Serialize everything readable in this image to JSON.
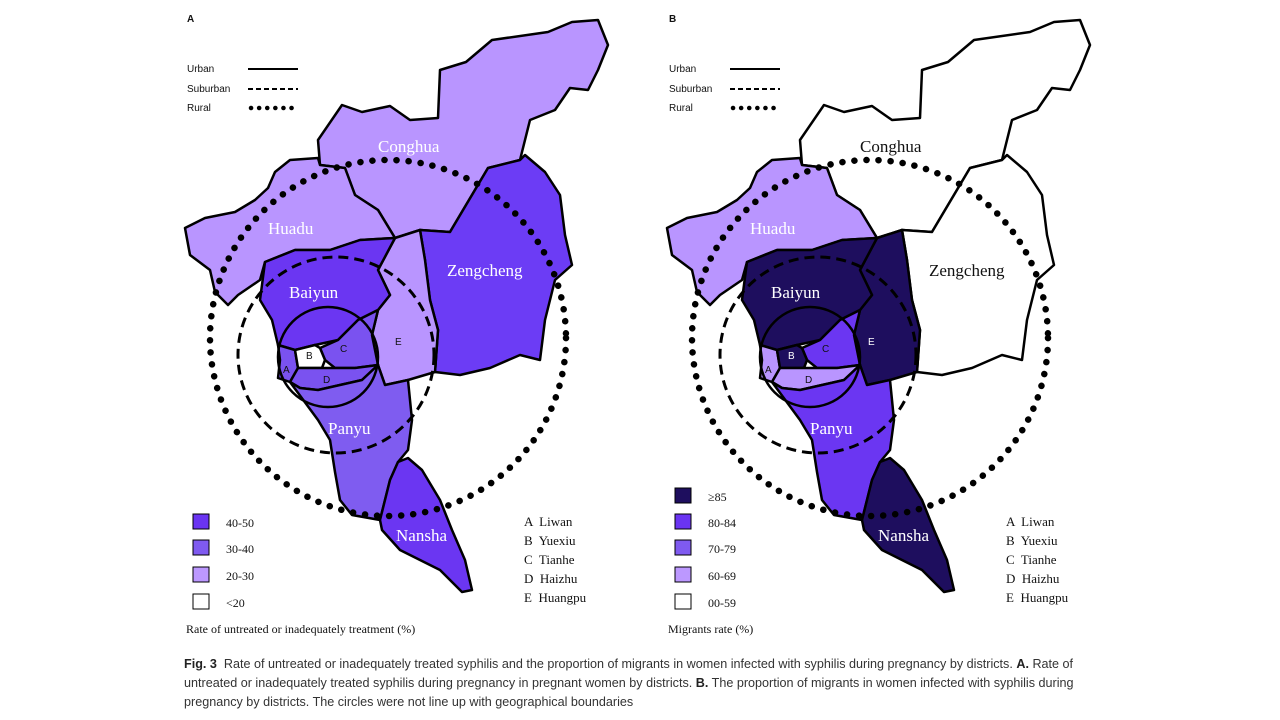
{
  "panels": [
    {
      "label": "A",
      "line_legend": [
        "Urban",
        "Suburban",
        "Rural"
      ],
      "district_labels": {
        "conghua": "Conghua",
        "huadu": "Huadu",
        "zengcheng": "Zengcheng",
        "baiyun": "Baiyun",
        "panyu": "Panyu",
        "nansha": "Nansha"
      },
      "small_labels": {
        "a": "A",
        "b": "B",
        "c": "C",
        "d": "D",
        "e": "E"
      },
      "fills": {
        "conghua": "#b995ff",
        "huadu": "#b995ff",
        "zengcheng": "#6c3cf5",
        "baiyun": "#6b36f2",
        "huangpu": "#b995ff",
        "tianhe": "#7a52f0",
        "liwan": "#7a52f0",
        "yuexiu": "#ffffff",
        "haizhu": "#7a52f0",
        "panyu": "#7f5cf0",
        "nansha": "#6b36f2"
      },
      "legend_items": [
        {
          "label": "40-50",
          "color": "#6a34f2"
        },
        {
          "label": "30-40",
          "color": "#7f5af0"
        },
        {
          "label": "20-30",
          "color": "#bc98ff"
        },
        {
          "label": "<20",
          "color": "#ffffff"
        }
      ],
      "abbreviations": [
        "A  Liwan",
        "B  Yuexiu",
        "C  Tianhe",
        "D  Haizhu",
        "E  Huangpu"
      ],
      "legend_title": "Rate of untreated or inadequately treatment (%)"
    },
    {
      "label": "B",
      "line_legend": [
        "Urban",
        "Suburban",
        "Rural"
      ],
      "district_labels": {
        "conghua": "Conghua",
        "huadu": "Huadu",
        "zengcheng": "Zengcheng",
        "baiyun": "Baiyun",
        "panyu": "Panyu",
        "nansha": "Nansha"
      },
      "small_labels": {
        "a": "A",
        "b": "B",
        "c": "C",
        "d": "D",
        "e": "E"
      },
      "fills": {
        "conghua": "#ffffff",
        "huadu": "#b995ff",
        "zengcheng": "#ffffff",
        "baiyun": "#1e0e5e",
        "huangpu": "#1e0e5e",
        "tianhe": "#6b36f2",
        "liwan": "#b995ff",
        "yuexiu": "#1e0e5e",
        "haizhu": "#b995ff",
        "panyu": "#6b36f2",
        "nansha": "#1e0e5e"
      },
      "legend_items": [
        {
          "label": "≥85",
          "color": "#1e0e5e"
        },
        {
          "label": "80-84",
          "color": "#6a34f2"
        },
        {
          "label": "70-79",
          "color": "#7f5af0"
        },
        {
          "label": "60-69",
          "color": "#bc98ff"
        },
        {
          "label": "00-59",
          "color": "#ffffff"
        }
      ],
      "abbreviations": [
        "A  Liwan",
        "B  Yuexiu",
        "C  Tianhe",
        "D  Haizhu",
        "E  Huangpu"
      ],
      "legend_title": "Migrants rate (%)"
    }
  ],
  "caption": {
    "fig_label": "Fig. 3",
    "text1": "Rate of untreated or inadequately treated syphilis and the proportion of migrants in women infected with syphilis during pregnancy by districts.",
    "a_label": "A.",
    "text2": "Rate of untreated or inadequately treated syphilis during pregnancy in pregnant women by districts.",
    "b_label": "B.",
    "text3": "The proportion of migrants in women infected with syphilis during pregnancy by districts. The circles were not line up with geographical boundaries"
  }
}
